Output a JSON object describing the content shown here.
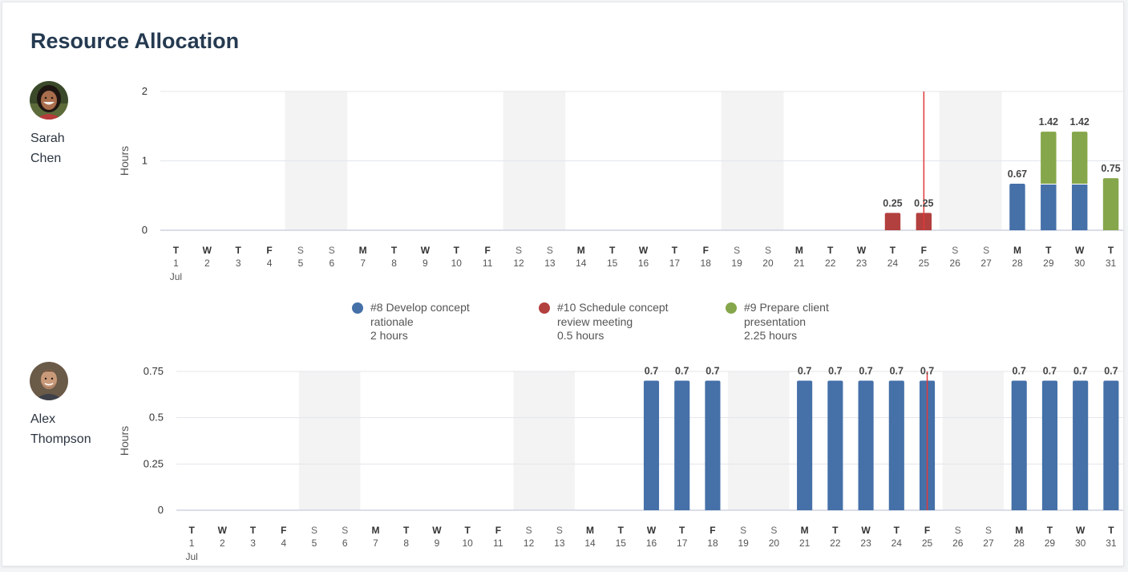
{
  "title": "Resource Allocation",
  "colors": {
    "blue": "#4570a8",
    "red": "#b2403f",
    "green": "#86a64b",
    "weekend": "#f3f3f3",
    "grid": "#e3e5ea",
    "today": "#e03a3a"
  },
  "people": [
    {
      "first": "Sarah",
      "last": "Chen",
      "avatar_icon": "avatar-woman"
    },
    {
      "first": "Alex",
      "last": "Thompson",
      "avatar_icon": "avatar-man"
    }
  ],
  "legend": [
    {
      "color": "#4570a8",
      "line1": "#8 Develop concept",
      "line2": "rationale",
      "hours": "2 hours"
    },
    {
      "color": "#b2403f",
      "line1": "#10 Schedule concept",
      "line2": "review meeting",
      "hours": "0.5 hours"
    },
    {
      "color": "#86a64b",
      "line1": "#9 Prepare client",
      "line2": "presentation",
      "hours": "2.25 hours"
    }
  ],
  "chart_data": [
    {
      "type": "bar",
      "title": "",
      "ylabel": "Hours",
      "ylim": [
        0,
        2
      ],
      "yticks": [
        "0",
        "1",
        "2"
      ],
      "month_label": "Jul",
      "weekday_letters": [
        "T",
        "W",
        "T",
        "F",
        "S",
        "S",
        "M",
        "T",
        "W",
        "T",
        "F",
        "S",
        "S",
        "M",
        "T",
        "W",
        "T",
        "F",
        "S",
        "S",
        "M",
        "T",
        "W",
        "T",
        "F",
        "S",
        "S",
        "M",
        "T",
        "W",
        "T"
      ],
      "days": [
        "1",
        "2",
        "3",
        "4",
        "5",
        "6",
        "7",
        "8",
        "9",
        "10",
        "11",
        "12",
        "13",
        "14",
        "15",
        "16",
        "17",
        "18",
        "19",
        "20",
        "21",
        "22",
        "23",
        "24",
        "25",
        "26",
        "27",
        "28",
        "29",
        "30",
        "31"
      ],
      "weekend_pairs": [
        [
          5,
          6
        ],
        [
          12,
          13
        ],
        [
          19,
          20
        ],
        [
          26,
          27
        ]
      ],
      "today_day": 25,
      "series": [
        {
          "name": "#8 Develop concept rationale",
          "color": "#4570a8",
          "values": {
            "28": 0.67,
            "29": 0.67,
            "30": 0.67
          }
        },
        {
          "name": "#9 Prepare client presentation",
          "color": "#86a64b",
          "values": {
            "29": 0.75,
            "30": 0.75,
            "31": 0.75
          }
        },
        {
          "name": "#10 Schedule concept review meeting",
          "color": "#b2403f",
          "values": {
            "24": 0.25,
            "25": 0.25
          }
        }
      ],
      "totals": [
        {
          "day": 24,
          "label": "0.25"
        },
        {
          "day": 25,
          "label": "0.25"
        },
        {
          "day": 28,
          "label": "0.67"
        },
        {
          "day": 29,
          "label": "1.42"
        },
        {
          "day": 30,
          "label": "1.42"
        },
        {
          "day": 31,
          "label": "0.75"
        }
      ],
      "grid": true
    },
    {
      "type": "bar",
      "title": "",
      "ylabel": "Hours",
      "ylim": [
        0,
        0.75
      ],
      "yticks": [
        "0",
        "0.25",
        "0.5",
        "0.75"
      ],
      "month_label": "Jul",
      "weekday_letters": [
        "T",
        "W",
        "T",
        "F",
        "S",
        "S",
        "M",
        "T",
        "W",
        "T",
        "F",
        "S",
        "S",
        "M",
        "T",
        "W",
        "T",
        "F",
        "S",
        "S",
        "M",
        "T",
        "W",
        "T",
        "F",
        "S",
        "S",
        "M",
        "T",
        "W",
        "T"
      ],
      "days": [
        "1",
        "2",
        "3",
        "4",
        "5",
        "6",
        "7",
        "8",
        "9",
        "10",
        "11",
        "12",
        "13",
        "14",
        "15",
        "16",
        "17",
        "18",
        "19",
        "20",
        "21",
        "22",
        "23",
        "24",
        "25",
        "26",
        "27",
        "28",
        "29",
        "30",
        "31"
      ],
      "weekend_pairs": [
        [
          5,
          6
        ],
        [
          12,
          13
        ],
        [
          19,
          20
        ],
        [
          26,
          27
        ]
      ],
      "today_day": 25,
      "series": [
        {
          "name": "#8 Develop concept rationale",
          "color": "#4570a8",
          "values": {
            "16": 0.7,
            "17": 0.7,
            "18": 0.7,
            "21": 0.7,
            "22": 0.7,
            "23": 0.7,
            "24": 0.7,
            "25": 0.7,
            "28": 0.7,
            "29": 0.7,
            "30": 0.7,
            "31": 0.7
          }
        }
      ],
      "totals": [
        {
          "day": 16,
          "label": "0.7"
        },
        {
          "day": 17,
          "label": "0.7"
        },
        {
          "day": 18,
          "label": "0.7"
        },
        {
          "day": 21,
          "label": "0.7"
        },
        {
          "day": 22,
          "label": "0.7"
        },
        {
          "day": 23,
          "label": "0.7"
        },
        {
          "day": 24,
          "label": "0.7"
        },
        {
          "day": 25,
          "label": "0.7"
        },
        {
          "day": 28,
          "label": "0.7"
        },
        {
          "day": 29,
          "label": "0.7"
        },
        {
          "day": 30,
          "label": "0.7"
        },
        {
          "day": 31,
          "label": "0.7"
        }
      ],
      "grid": true
    }
  ]
}
